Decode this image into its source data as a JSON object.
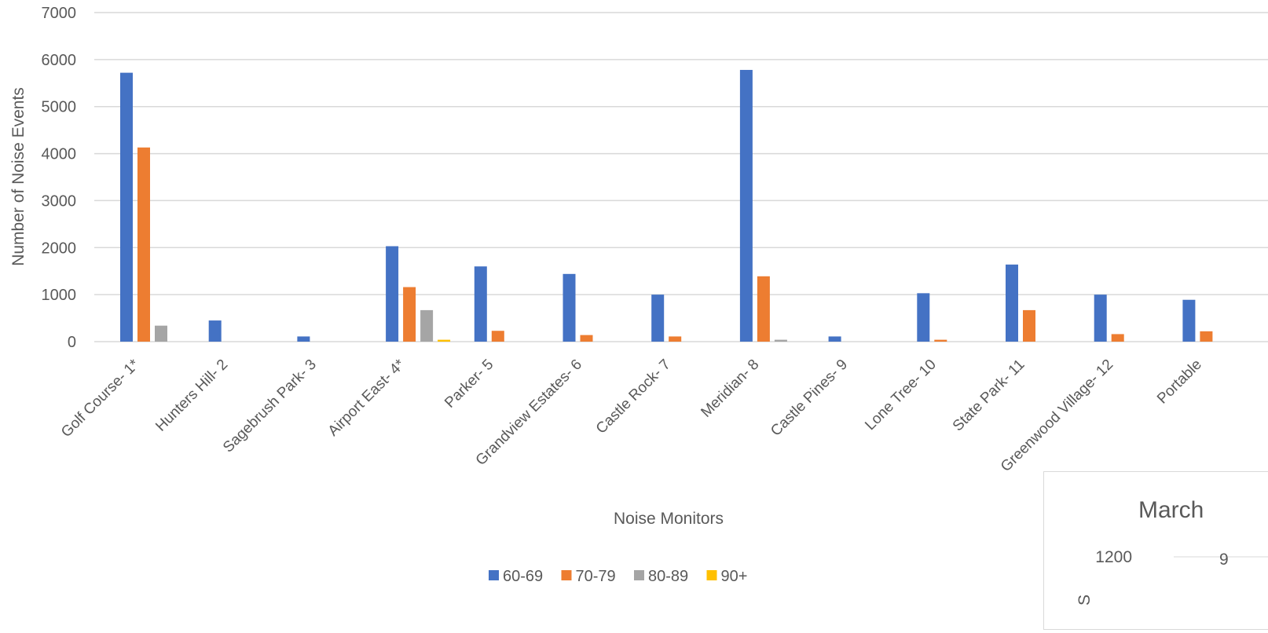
{
  "chart_data": [
    {
      "type": "bar",
      "title": "",
      "xlabel": "Noise Monitors",
      "ylabel": "Number of Noise Events",
      "ylim": [
        0,
        7000
      ],
      "yticks": [
        0,
        1000,
        2000,
        3000,
        4000,
        5000,
        6000,
        7000
      ],
      "grid": true,
      "legend_position": "bottom",
      "categories": [
        "Golf Course- 1*",
        "Hunters Hill- 2",
        "Sagebrush Park- 3",
        "Airport East- 4*",
        "Parker- 5",
        "Grandview Estates- 6",
        "Castle Rock- 7",
        "Meridian- 8",
        "Castle Pines- 9",
        "Lone Tree- 10",
        "State Park- 11",
        "Greenwood Village- 12",
        "Portable"
      ],
      "series": [
        {
          "name": "60-69",
          "color": "#4472c4",
          "values": [
            5720,
            450,
            110,
            2030,
            1600,
            1440,
            1000,
            5780,
            110,
            1030,
            1640,
            1000,
            890
          ]
        },
        {
          "name": "70-79",
          "color": "#ed7d31",
          "values": [
            4130,
            0,
            0,
            1160,
            230,
            140,
            110,
            1390,
            0,
            40,
            670,
            160,
            220
          ]
        },
        {
          "name": "80-89",
          "color": "#a5a5a5",
          "values": [
            340,
            0,
            0,
            670,
            0,
            0,
            0,
            40,
            0,
            0,
            0,
            0,
            0
          ]
        },
        {
          "name": "90+",
          "color": "#ffc000",
          "values": [
            0,
            0,
            0,
            40,
            0,
            0,
            0,
            0,
            0,
            0,
            0,
            0,
            0
          ]
        }
      ]
    },
    {
      "type": "bar",
      "title": "March",
      "ytick_label": "1200",
      "partial_label": "9",
      "ylabel_fragment": "S"
    }
  ]
}
